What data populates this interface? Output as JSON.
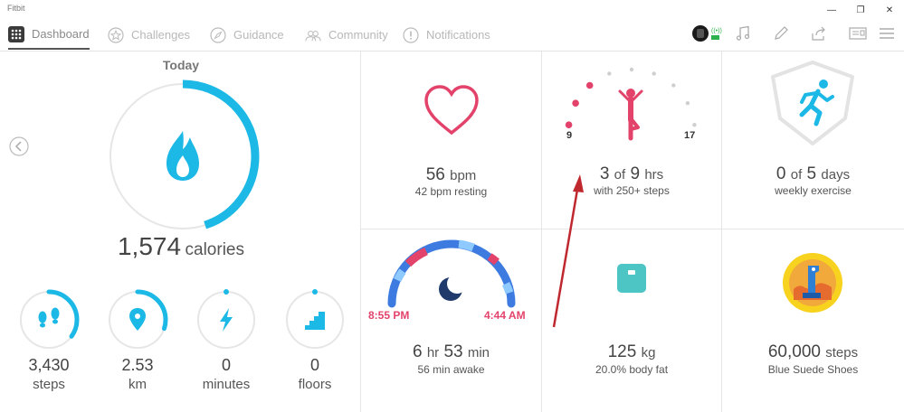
{
  "app": {
    "title": "Fitbit"
  },
  "window": {
    "buttons": [
      "minimize",
      "restore",
      "close"
    ]
  },
  "nav": {
    "tabs": [
      {
        "label": "Dashboard",
        "active": true
      },
      {
        "label": "Challenges",
        "active": false
      },
      {
        "label": "Guidance",
        "active": false
      },
      {
        "label": "Community",
        "active": false
      },
      {
        "label": "Notifications",
        "active": false
      }
    ]
  },
  "today": {
    "heading": "Today",
    "calories_value": "1,574",
    "calories_unit": "calories",
    "calories_progress": 0.45
  },
  "stats": [
    {
      "value": "3,430",
      "label": "steps",
      "progress": 0.35
    },
    {
      "value": "2.53",
      "label": "km",
      "progress": 0.3
    },
    {
      "value": "0",
      "label": "minutes",
      "progress": 0.0
    },
    {
      "value": "0",
      "label": "floors",
      "progress": 0.0
    }
  ],
  "tiles": {
    "heart": {
      "value": "56",
      "unit": "bpm",
      "sub": "42 bpm resting"
    },
    "hourly": {
      "value": "3",
      "of": "of",
      "total": "9",
      "unit": "hrs",
      "sub": "with 250+ steps",
      "start_label": "9",
      "end_label": "17"
    },
    "exercise": {
      "value": "0",
      "of": "of",
      "total": "5",
      "unit": "days",
      "sub": "weekly exercise"
    },
    "sleep": {
      "hours": "6",
      "hours_unit": "hr",
      "minutes": "53",
      "minutes_unit": "min",
      "sub": "56 min awake",
      "start": "8:55 PM",
      "end": "4:44 AM"
    },
    "weight": {
      "value": "125",
      "unit": "kg",
      "sub": "20.0% body fat"
    },
    "badge": {
      "value": "60,000",
      "unit": "steps",
      "sub": "Blue Suede Shoes"
    }
  },
  "colors": {
    "accent": "#1cb8e6",
    "heart": "#e3436b",
    "teal": "#4dc5c5",
    "navy": "#1f3a6b",
    "ring_bg": "#e6e6e6"
  }
}
